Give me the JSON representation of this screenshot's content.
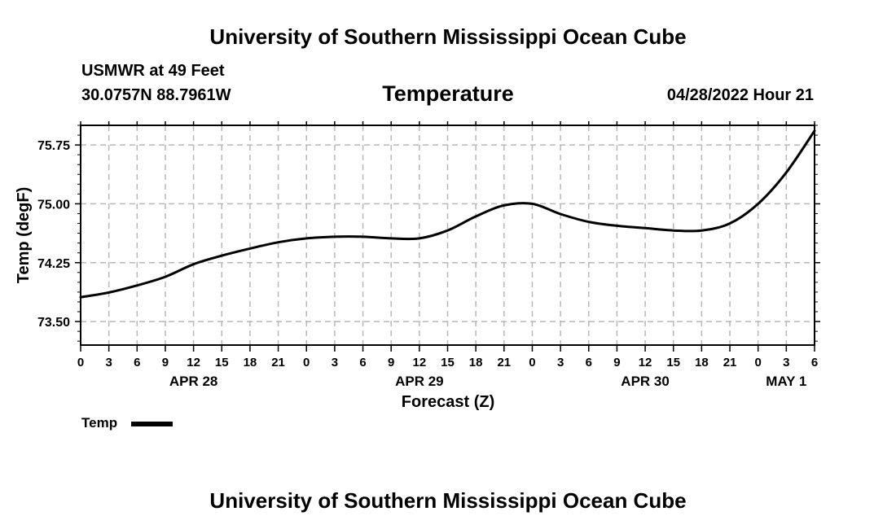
{
  "header": {
    "title": "University of Southern Mississippi Ocean Cube",
    "station": "USMWR at 49 Feet",
    "coordinates": "30.0757N  88.7961W",
    "panel_title": "Temperature",
    "timestamp": "04/28/2022 Hour 21"
  },
  "footer": {
    "title": "University of Southern Mississippi Ocean Cube"
  },
  "legend": {
    "label": "Temp",
    "color": "#000000"
  },
  "chart_data": {
    "type": "line",
    "title": "Temperature",
    "xlabel": "Forecast (Z)",
    "ylabel": "Temp (degF)",
    "xlim": [
      0,
      78
    ],
    "ylim": [
      73.2,
      76.0
    ],
    "yticks": [
      73.5,
      74.25,
      75.0,
      75.75
    ],
    "ytick_labels": [
      "73.50",
      "74.25",
      "75.00",
      "75.75"
    ],
    "xticks": [
      0,
      3,
      6,
      9,
      12,
      15,
      18,
      21,
      24,
      27,
      30,
      33,
      36,
      39,
      42,
      45,
      48,
      51,
      54,
      57,
      60,
      63,
      66,
      69,
      72,
      75,
      78
    ],
    "xtick_labels": [
      "0",
      "3",
      "6",
      "9",
      "12",
      "15",
      "18",
      "21",
      "0",
      "3",
      "6",
      "9",
      "12",
      "15",
      "18",
      "21",
      "0",
      "3",
      "6",
      "9",
      "12",
      "15",
      "18",
      "21",
      "0",
      "3",
      "6"
    ],
    "date_labels": [
      {
        "label": "APR 28",
        "x": 12
      },
      {
        "label": "APR 29",
        "x": 36
      },
      {
        "label": "APR 30",
        "x": 60
      },
      {
        "label": "MAY 1",
        "x": 75
      }
    ],
    "grid": true,
    "series": [
      {
        "name": "Temp",
        "color": "#000000",
        "x": [
          0,
          3,
          6,
          9,
          12,
          15,
          18,
          21,
          24,
          27,
          30,
          33,
          36,
          39,
          42,
          45,
          48,
          51,
          54,
          57,
          60,
          63,
          66,
          69,
          72,
          75,
          78
        ],
        "y": [
          73.81,
          73.87,
          73.96,
          74.07,
          74.23,
          74.34,
          74.43,
          74.51,
          74.56,
          74.58,
          74.58,
          74.56,
          74.56,
          74.66,
          74.84,
          74.98,
          75.0,
          74.87,
          74.77,
          74.72,
          74.69,
          74.66,
          74.66,
          74.75,
          75.0,
          75.4,
          75.93
        ]
      }
    ]
  }
}
